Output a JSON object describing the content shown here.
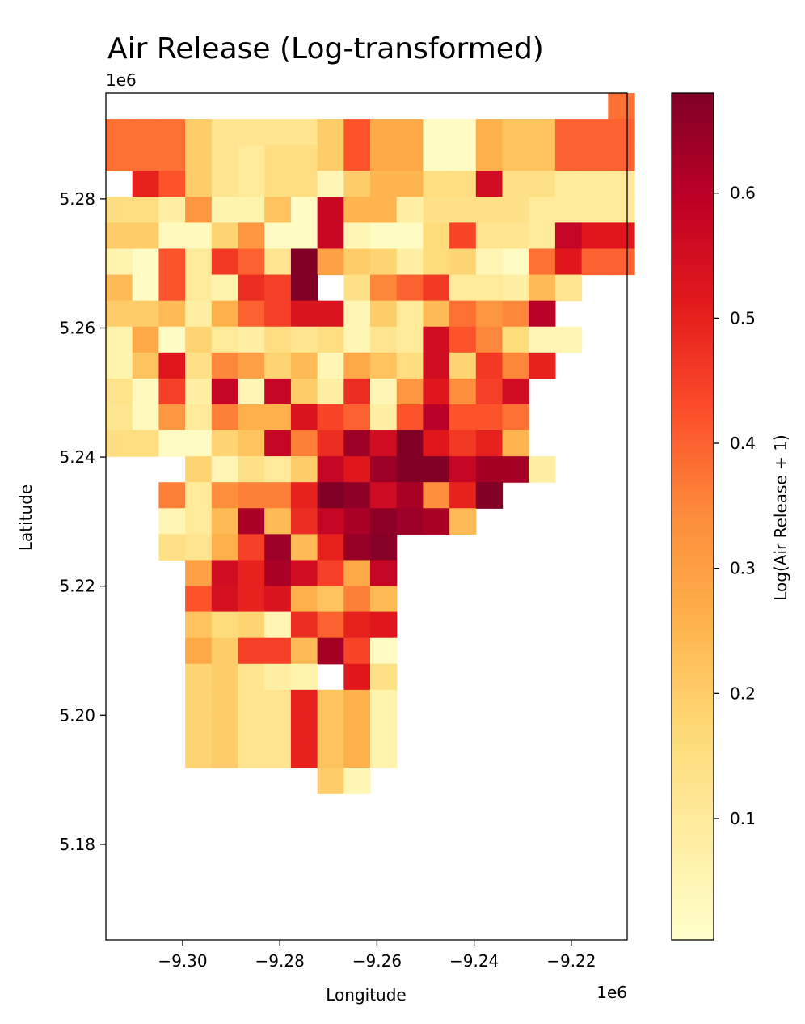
{
  "chart_data": {
    "type": "heatmap",
    "title": "Air Release (Log-transformed)",
    "xlabel": "Longitude",
    "ylabel": "Latitude",
    "x_offset_label": "1e6",
    "y_offset_label": "1e6",
    "xlim": [
      -9.3158,
      -9.2085
    ],
    "ylim": [
      5.1652,
      5.2964
    ],
    "x_ticks": [
      -9.3,
      -9.28,
      -9.26,
      -9.24,
      -9.22
    ],
    "x_tick_labels": [
      "−9.30",
      "−9.28",
      "−9.26",
      "−9.24",
      "−9.22"
    ],
    "y_ticks": [
      5.18,
      5.2,
      5.22,
      5.24,
      5.26,
      5.28
    ],
    "y_tick_labels": [
      "5.18",
      "5.20",
      "5.22",
      "5.24",
      "5.26",
      "5.28"
    ],
    "colorbar": {
      "label": "Log(Air Release + 1)",
      "min": 0.003,
      "max": 0.68,
      "ticks": [
        0.1,
        0.2,
        0.3,
        0.4,
        0.5,
        0.6
      ],
      "tick_labels": [
        "0.1",
        "0.2",
        "0.3",
        "0.4",
        "0.5",
        "0.6"
      ],
      "colormap": "YlOrRd"
    },
    "grid": {
      "lon_start": -9.3158,
      "lat_top": 5.2964,
      "cell_width": 0.00544,
      "cell_height": 0.00402,
      "row_offsets": [
        19,
        0,
        0,
        0,
        0,
        0,
        0,
        0,
        0,
        0,
        0,
        0,
        0,
        0,
        0,
        2,
        2,
        2,
        3,
        3,
        3,
        3,
        3,
        3,
        3,
        3,
        8
      ],
      "rows": [
        [
          0.38
        ],
        [
          0.38,
          0.38,
          0.38,
          0.2,
          0.12,
          0.12,
          0.12,
          0.12,
          0.2,
          0.42,
          0.28,
          0.28,
          0.02,
          0.02,
          0.26,
          0.22,
          0.22,
          0.4,
          0.4,
          0.4
        ],
        [
          0.38,
          0.38,
          0.38,
          0.2,
          0.12,
          0.1,
          0.15,
          0.15,
          0.2,
          0.42,
          0.28,
          0.28,
          0.02,
          0.02,
          0.26,
          0.22,
          0.22,
          0.4,
          0.4,
          0.4
        ],
        [
          null,
          0.5,
          0.42,
          0.2,
          0.12,
          0.1,
          0.15,
          0.15,
          0.05,
          0.2,
          0.25,
          0.25,
          0.15,
          0.15,
          0.55,
          0.14,
          0.14,
          0.1,
          0.1,
          0.1
        ],
        [
          0.15,
          0.15,
          0.08,
          0.32,
          0.06,
          0.06,
          0.22,
          0.02,
          0.57,
          0.25,
          0.25,
          0.08,
          0.14,
          0.14,
          0.14,
          0.14,
          0.1,
          0.1,
          0.1,
          0.1
        ],
        [
          0.2,
          0.2,
          0.03,
          0.03,
          0.18,
          0.32,
          0.02,
          0.02,
          0.57,
          0.05,
          0.02,
          0.02,
          0.16,
          0.44,
          0.12,
          0.12,
          0.1,
          0.58,
          0.52,
          0.52
        ],
        [
          0.06,
          0.02,
          0.42,
          0.1,
          0.46,
          0.4,
          0.12,
          0.68,
          0.3,
          0.2,
          0.18,
          0.08,
          0.16,
          0.18,
          0.05,
          0.02,
          0.38,
          0.52,
          0.4,
          0.4
        ],
        [
          0.24,
          0.02,
          0.42,
          0.1,
          0.06,
          0.48,
          0.45,
          0.68,
          null,
          0.14,
          0.35,
          0.4,
          0.46,
          0.1,
          0.1,
          0.08,
          0.24,
          0.12,
          null,
          null
        ],
        [
          0.2,
          0.2,
          0.24,
          0.08,
          0.26,
          0.4,
          0.45,
          0.53,
          0.53,
          0.05,
          0.2,
          0.1,
          0.24,
          0.38,
          0.32,
          0.35,
          0.6,
          null,
          null,
          null
        ],
        [
          0.06,
          0.28,
          0.02,
          0.18,
          0.1,
          0.08,
          0.15,
          0.12,
          0.15,
          0.05,
          0.12,
          0.1,
          0.55,
          0.42,
          0.35,
          0.16,
          0.05,
          0.05,
          null,
          null
        ],
        [
          0.06,
          0.22,
          0.52,
          0.14,
          0.35,
          0.3,
          0.18,
          0.24,
          0.05,
          0.28,
          0.22,
          0.15,
          0.55,
          0.18,
          0.46,
          0.35,
          0.5,
          null,
          null,
          null
        ],
        [
          0.13,
          0.03,
          0.45,
          0.08,
          0.58,
          0.05,
          0.58,
          0.2,
          0.08,
          0.48,
          0.05,
          0.32,
          0.52,
          0.34,
          0.45,
          0.55,
          null,
          null,
          null,
          null
        ],
        [
          0.12,
          0.03,
          0.32,
          0.1,
          0.36,
          0.26,
          0.26,
          0.53,
          0.44,
          0.4,
          0.08,
          0.42,
          0.6,
          0.42,
          0.42,
          0.38,
          null,
          null,
          null,
          null
        ],
        [
          0.15,
          0.15,
          0.02,
          0.02,
          0.18,
          0.22,
          0.58,
          0.36,
          0.48,
          0.64,
          0.55,
          0.68,
          0.52,
          0.46,
          0.5,
          0.25,
          null,
          null,
          null,
          null
        ],
        [
          null,
          null,
          null,
          0.18,
          0.05,
          0.14,
          0.1,
          0.2,
          0.58,
          0.52,
          0.64,
          0.68,
          0.68,
          0.58,
          0.63,
          0.63,
          0.08,
          null,
          null,
          null
        ],
        [
          0.36,
          0.1,
          0.34,
          0.36,
          0.36,
          0.5,
          0.68,
          0.66,
          0.56,
          0.62,
          0.34,
          0.5,
          0.68
        ],
        [
          0.05,
          0.1,
          0.24,
          0.62,
          0.24,
          0.48,
          0.58,
          0.62,
          0.66,
          0.64,
          0.62,
          0.24
        ],
        [
          0.14,
          0.12,
          0.26,
          0.45,
          0.64,
          0.24,
          0.5,
          0.65,
          0.67
        ],
        [
          0.3,
          0.55,
          0.5,
          0.62,
          0.55,
          0.45,
          0.28,
          0.58
        ],
        [
          0.42,
          0.54,
          0.5,
          0.53,
          0.26,
          0.22,
          0.36,
          0.24
        ],
        [
          0.22,
          0.16,
          0.18,
          0.05,
          0.48,
          0.4,
          0.5,
          0.52
        ],
        [
          0.28,
          0.2,
          0.45,
          0.45,
          0.24,
          0.63,
          0.44,
          0.02
        ],
        [
          0.18,
          0.2,
          0.12,
          0.08,
          0.06,
          null,
          0.52,
          0.14
        ],
        [
          0.18,
          0.2,
          0.12,
          0.12,
          0.5,
          0.22,
          0.26,
          0.06
        ],
        [
          0.18,
          0.2,
          0.12,
          0.12,
          0.5,
          0.22,
          0.26,
          0.06
        ],
        [
          0.18,
          0.2,
          0.12,
          0.12,
          0.5,
          0.22,
          0.26,
          0.06
        ],
        [
          0.2,
          0.05
        ]
      ]
    }
  }
}
